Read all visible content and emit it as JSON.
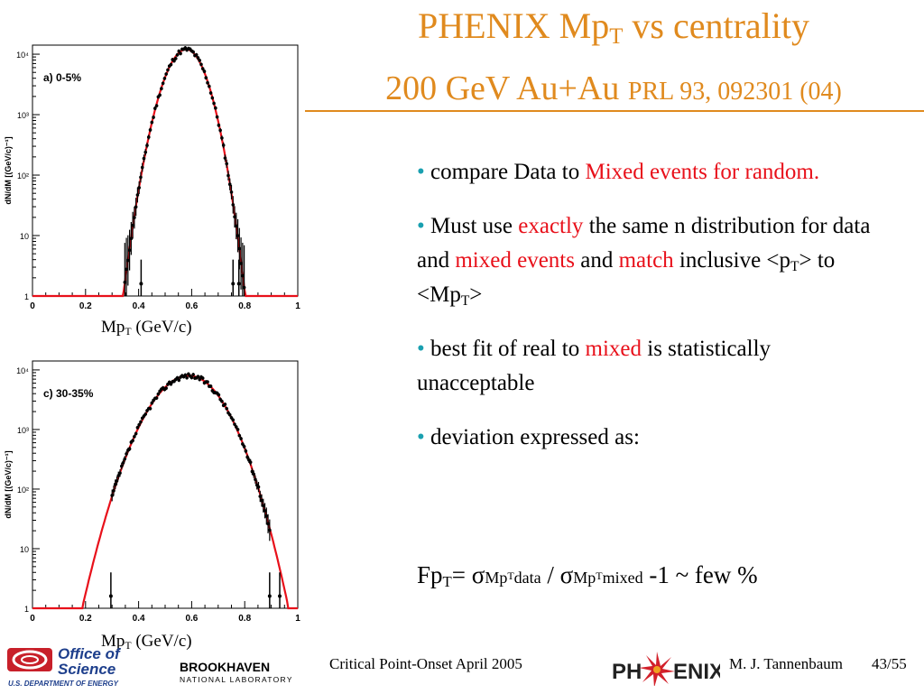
{
  "slide": {
    "title_line1_a": "PHENIX Mp",
    "title_line1_sub": "T",
    "title_line1_b": " vs centrality",
    "title_line2_a": "200 GeV Au+Au ",
    "title_line2_ref": "PRL 93, 092301 (04)",
    "xlabel_a": "Mp",
    "xlabel_sub": "T",
    "xlabel_b": " (GeV/c)",
    "bullets": {
      "b1_a": "compare Data to ",
      "b1_red": "Mixed events for random.",
      "b2_a": "Must use ",
      "b2_red1": "exactly",
      "b2_b": " the same n distribution for data and ",
      "b2_red2": "mixed events",
      "b2_c": " and ",
      "b2_red3": "match",
      "b2_d": " inclusive <p",
      "b2_sub1": "T",
      "b2_e": "> to <Mp",
      "b2_sub2": "T",
      "b2_f": ">",
      "b3_a": "best fit of real to ",
      "b3_red": "mixed",
      "b3_b": " is statistically unacceptable",
      "b4": "deviation expressed as:"
    },
    "formula": {
      "fp": "Fp",
      "fp_sub": "T",
      "eq": "= σ",
      "mp1": "Mp",
      "t1": "T",
      "data": "data",
      "slash": " / σ",
      "mp2": "Mp",
      "t2": "T",
      "mixed": "mixed",
      "tail": " -1  ~ few %"
    },
    "footer": {
      "conference": "Critical Point-Onset April 2005",
      "author": "M. J. Tannenbaum",
      "page": "43/55"
    },
    "logos": {
      "doe_line1": "Office of",
      "doe_line2": "Science",
      "doe_line3": "U.S. DEPARTMENT OF ENERGY",
      "bnl_line1": "BROOKHAVEN",
      "bnl_line2": "NATIONAL LABORATORY",
      "phenix_a": "PH",
      "phenix_b": "ENIX"
    },
    "colors": {
      "title": "#e08a1e",
      "highlight": "#e8101a",
      "bullet": "#1aa0b0"
    }
  },
  "chart_data": [
    {
      "type": "scatter",
      "panel_label": "a) 0-5%",
      "ylabel": "dN/dM_{p_T} [(GeV/c)^{-1}]",
      "xlim": [
        0,
        1.0
      ],
      "ylog": true,
      "ylim": [
        1,
        10000
      ],
      "x_ticks": [
        "0",
        "0.2",
        "0.4",
        "0.6",
        "0.8",
        "1"
      ],
      "y_ticks": [
        "1",
        "10",
        "10²",
        "10³",
        "10⁴"
      ],
      "peak": {
        "x": 0.58,
        "y": 12000
      },
      "sigma": 0.055,
      "series": [
        {
          "values": "data (black points)"
        },
        {
          "values": "mixed events (red line)"
        }
      ]
    },
    {
      "type": "scatter",
      "panel_label": "c) 30-35%",
      "ylabel": "dN/dM_{p_T} [(GeV/c)^{-1}]",
      "xlim": [
        0,
        1.0
      ],
      "ylog": true,
      "ylim": [
        1,
        10000
      ],
      "x_ticks": [
        "0",
        "0.2",
        "0.4",
        "0.6",
        "0.8",
        "1"
      ],
      "y_ticks": [
        "1",
        "10",
        "10²",
        "10³",
        "10⁴"
      ],
      "peak": {
        "x": 0.59,
        "y": 8000
      },
      "sigma": 0.095,
      "series": [
        {
          "values": "data (black points)"
        },
        {
          "values": "mixed events (red line)"
        }
      ]
    }
  ]
}
